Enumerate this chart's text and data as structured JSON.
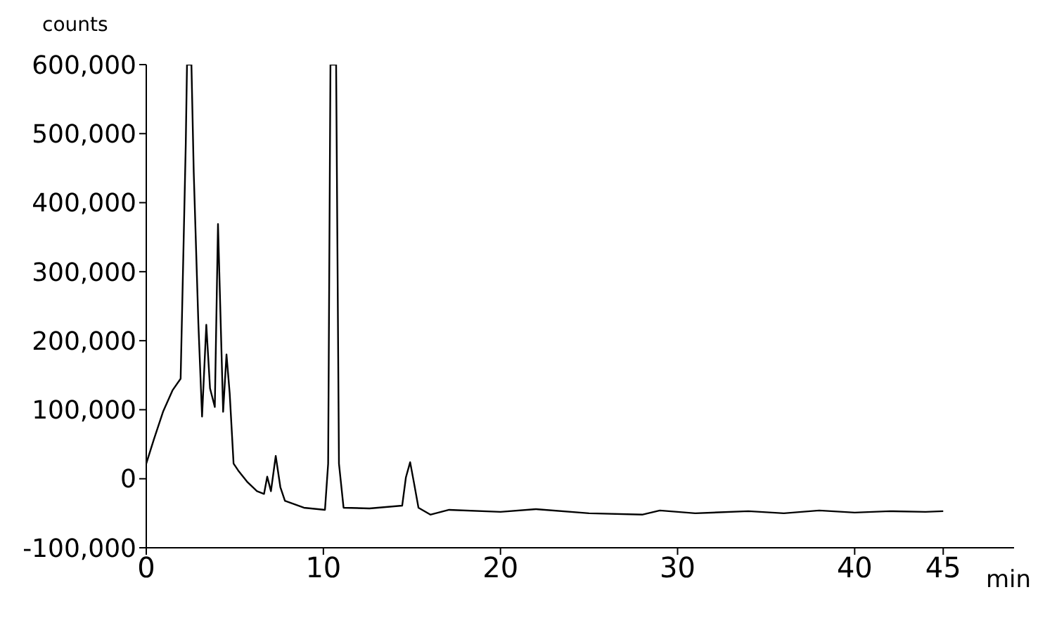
{
  "chart_data": {
    "type": "line",
    "xlabel": "min",
    "ylabel": "counts",
    "xlim": [
      0,
      49
    ],
    "xticks": [
      0,
      10,
      20,
      30,
      40,
      45
    ],
    "ylim": [
      -100000,
      600000
    ],
    "yticks": [
      {
        "value": -100000,
        "label": "-100,000"
      },
      0,
      {
        "value": 100000,
        "label": "100,000"
      },
      {
        "value": 200000,
        "label": "200,000"
      },
      {
        "value": 300000,
        "label": "300,000"
      },
      {
        "value": 400000,
        "label": "400,000"
      },
      {
        "value": 500000,
        "label": "500,000"
      },
      {
        "value": 600000,
        "label": "600,000"
      }
    ],
    "grid": false,
    "legend": false,
    "marker": "none",
    "line_style": "solid",
    "series": [
      {
        "color": "#000000",
        "x": [
          0,
          0.43,
          0.96,
          1.48,
          1.94,
          2.23,
          2.3,
          2.5,
          2.55,
          2.68,
          2.94,
          3.15,
          3.39,
          3.6,
          3.87,
          4.05,
          4.34,
          4.53,
          4.71,
          4.93,
          5.19,
          5.72,
          6.25,
          6.65,
          6.83,
          7.04,
          7.31,
          7.57,
          7.83,
          8.9,
          10.09,
          10.27,
          10.4,
          10.72,
          10.88,
          11.14,
          12.6,
          14.45,
          14.66,
          14.9,
          15.11,
          15.37,
          16.04,
          17.1,
          20,
          22,
          25,
          28,
          29,
          31,
          34,
          36,
          38,
          40,
          42,
          44,
          45
        ],
        "values": [
          22000,
          57000,
          98000,
          128000,
          145000,
          485000,
          600000,
          600000,
          600000,
          444000,
          226000,
          90000,
          223000,
          131000,
          104000,
          369000,
          97000,
          180000,
          124000,
          22000,
          12000,
          -5000,
          -18000,
          -22000,
          3000,
          -18000,
          33000,
          -12000,
          -32000,
          -42000,
          -45000,
          22000,
          600000,
          600000,
          22000,
          -42000,
          -43000,
          -39000,
          2000,
          24000,
          -5000,
          -42000,
          -52000,
          -45000,
          -48000,
          -44000,
          -50000,
          -52000,
          -46000,
          -50000,
          -47000,
          -50000,
          -46000,
          -49000,
          -47000,
          -48000,
          -47000
        ]
      }
    ]
  }
}
